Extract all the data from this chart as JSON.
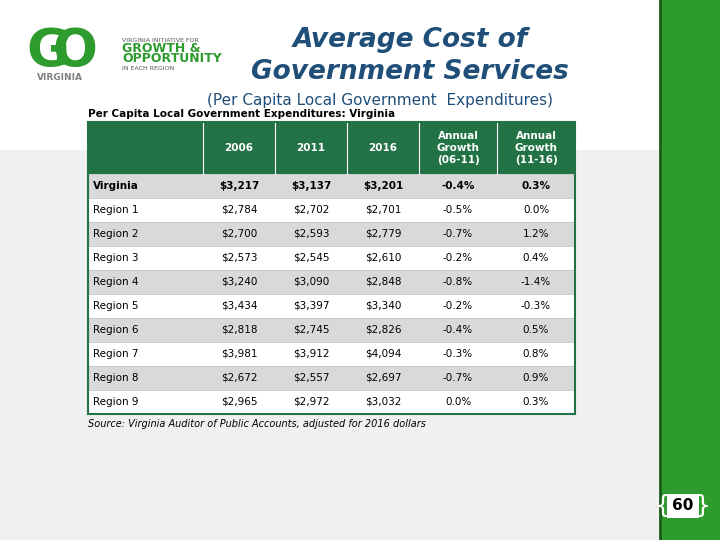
{
  "title_line1": "Average Cost of",
  "title_line2": "Government Services",
  "subtitle": "(Per Capita Local Government  Expenditures)",
  "table_title": "Per Capita Local Government Expenditures: Virginia",
  "col_headers": [
    "",
    "2006",
    "2011",
    "2016",
    "Annual\nGrowth\n(06-11)",
    "Annual\nGrowth\n(11-16)"
  ],
  "rows": [
    [
      "Virginia",
      "$3,217",
      "$3,137",
      "$3,201",
      "-0.4%",
      "0.3%"
    ],
    [
      "Region 1",
      "$2,784",
      "$2,702",
      "$2,701",
      "-0.5%",
      "0.0%"
    ],
    [
      "Region 2",
      "$2,700",
      "$2,593",
      "$2,779",
      "-0.7%",
      "1.2%"
    ],
    [
      "Region 3",
      "$2,573",
      "$2,545",
      "$2,610",
      "-0.2%",
      "0.4%"
    ],
    [
      "Region 4",
      "$3,240",
      "$3,090",
      "$2,848",
      "-0.8%",
      "-1.4%"
    ],
    [
      "Region 5",
      "$3,434",
      "$3,397",
      "$3,340",
      "-0.2%",
      "-0.3%"
    ],
    [
      "Region 6",
      "$2,818",
      "$2,745",
      "$2,826",
      "-0.4%",
      "0.5%"
    ],
    [
      "Region 7",
      "$3,981",
      "$3,912",
      "$4,094",
      "-0.3%",
      "0.8%"
    ],
    [
      "Region 8",
      "$2,672",
      "$2,557",
      "$2,697",
      "-0.7%",
      "0.9%"
    ],
    [
      "Region 9",
      "$2,965",
      "$2,972",
      "$3,032",
      "0.0%",
      "0.3%"
    ]
  ],
  "source_text": "Source: Virginia Auditor of Public Accounts, adjusted for 2016 dollars",
  "page_number": "60",
  "header_bg": "#217346",
  "header_fg": "#ffffff",
  "virginia_row_bg": "#d9d9d9",
  "alt_row_bg": "#ffffff",
  "title_color": "#1f4e79",
  "subtitle_color": "#1f4e79",
  "green_stripe": "#2e9b2e",
  "dark_green_line": "#1a5c1a",
  "border_color": "#217346",
  "table_bg": "#e8e8e8",
  "row_border": "#bbbbbb"
}
